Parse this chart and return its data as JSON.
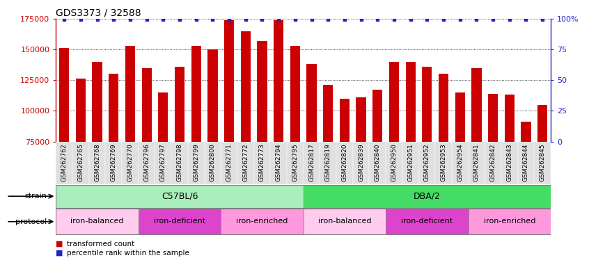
{
  "title": "GDS3373 / 32588",
  "samples": [
    "GSM262762",
    "GSM262765",
    "GSM262768",
    "GSM262769",
    "GSM262770",
    "GSM262796",
    "GSM262797",
    "GSM262798",
    "GSM262799",
    "GSM262800",
    "GSM262771",
    "GSM262772",
    "GSM262773",
    "GSM262794",
    "GSM262795",
    "GSM262817",
    "GSM262819",
    "GSM262820",
    "GSM262839",
    "GSM262840",
    "GSM262950",
    "GSM262951",
    "GSM262952",
    "GSM262953",
    "GSM262954",
    "GSM262841",
    "GSM262842",
    "GSM262843",
    "GSM262844",
    "GSM262845"
  ],
  "values": [
    151000,
    126000,
    140000,
    130000,
    153000,
    135000,
    115000,
    136000,
    153000,
    150000,
    174000,
    165000,
    157000,
    174000,
    153000,
    138000,
    121000,
    110000,
    111000,
    117000,
    140000,
    140000,
    136000,
    130000,
    115000,
    135000,
    114000,
    113000,
    91000,
    105000
  ],
  "bar_color": "#cc0000",
  "dot_color": "#2222cc",
  "ylim_left": [
    75000,
    175000
  ],
  "ylim_right": [
    0,
    100
  ],
  "yticks_left": [
    75000,
    100000,
    125000,
    150000,
    175000
  ],
  "yticks_right": [
    0,
    25,
    50,
    75,
    100
  ],
  "strain_groups": [
    {
      "label": "C57BL/6",
      "start": 0,
      "end": 15,
      "color": "#aaeebb"
    },
    {
      "label": "DBA/2",
      "start": 15,
      "end": 30,
      "color": "#44dd66"
    }
  ],
  "protocol_groups": [
    {
      "label": "iron-balanced",
      "start": 0,
      "end": 5,
      "color": "#ffccee"
    },
    {
      "label": "iron-deficient",
      "start": 5,
      "end": 10,
      "color": "#ee44cc"
    },
    {
      "label": "iron-enriched",
      "start": 10,
      "end": 15,
      "color": "#ff88dd"
    },
    {
      "label": "iron-balanced",
      "start": 15,
      "end": 20,
      "color": "#ffccee"
    },
    {
      "label": "iron-deficient",
      "start": 20,
      "end": 25,
      "color": "#ee44cc"
    },
    {
      "label": "iron-enriched",
      "start": 25,
      "end": 30,
      "color": "#ff88dd"
    }
  ],
  "legend_red_label": "transformed count",
  "legend_blue_label": "percentile rank within the sample",
  "strain_label": "strain",
  "protocol_label": "protocol",
  "title_fontsize": 10,
  "tick_fontsize": 6.5,
  "bar_width": 0.6,
  "xticklabel_bg": "#e0e0e0"
}
